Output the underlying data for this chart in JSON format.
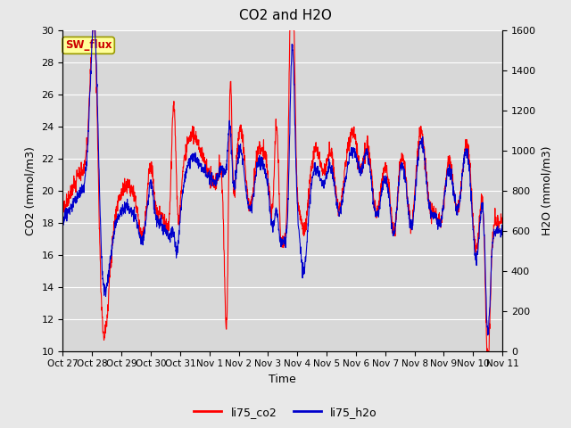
{
  "title": "CO2 and H2O",
  "xlabel": "Time",
  "ylabel_left": "CO2 (mmol/m3)",
  "ylabel_right": "H2O (mmol/m3)",
  "ylim_left": [
    10,
    30
  ],
  "ylim_right": [
    0,
    1600
  ],
  "yticks_left": [
    10,
    12,
    14,
    16,
    18,
    20,
    22,
    24,
    26,
    28,
    30
  ],
  "yticks_right": [
    0,
    200,
    400,
    600,
    800,
    1000,
    1200,
    1400,
    1600
  ],
  "xtick_labels": [
    "Oct 27",
    "Oct 28",
    "Oct 29",
    "Oct 30",
    "Oct 31",
    "Nov 1",
    "Nov 2",
    "Nov 3",
    "Nov 4",
    "Nov 5",
    "Nov 6",
    "Nov 7",
    "Nov 8",
    "Nov 9",
    "Nov 10",
    "Nov 11"
  ],
  "co2_color": "#ff0000",
  "h2o_color": "#0000cc",
  "fig_bg_color": "#e8e8e8",
  "plot_bg_color": "#d8d8d8",
  "sw_flux_label": "SW_flux",
  "sw_flux_bg": "#ffff99",
  "sw_flux_border": "#999900",
  "sw_flux_text_color": "#cc0000",
  "legend_co2": "li75_co2",
  "legend_h2o": "li75_h2o",
  "line_width": 0.8,
  "title_fontsize": 11,
  "axis_label_fontsize": 9,
  "tick_fontsize": 8,
  "n_points": 2000,
  "days": 15,
  "seed": 7
}
